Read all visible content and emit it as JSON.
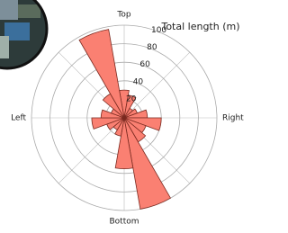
{
  "chart_data": {
    "type": "polar-bar",
    "radial_label": "Total length (m)",
    "angular_labels": [
      "Top",
      "Right",
      "Bottom",
      "Left"
    ],
    "x": [
      0,
      20,
      40,
      60,
      80,
      100,
      120,
      140,
      160,
      180,
      200,
      220,
      240,
      260,
      280,
      300,
      320,
      340
    ],
    "values": [
      30,
      25,
      12,
      15,
      25,
      40,
      25,
      30,
      100,
      55,
      20,
      15,
      20,
      35,
      25,
      15,
      30,
      97
    ],
    "color": "#fa8072",
    "ylim": [
      0,
      100
    ],
    "yticks": [
      20,
      40,
      60,
      80,
      100
    ],
    "grid": true
  }
}
